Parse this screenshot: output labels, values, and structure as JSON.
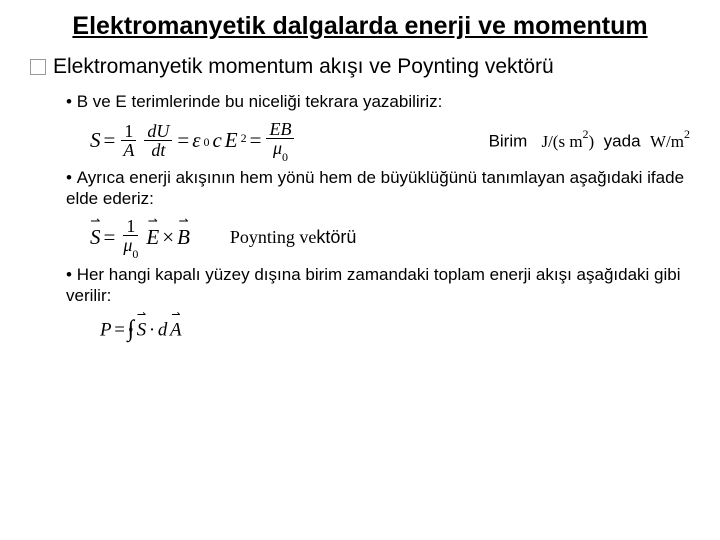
{
  "colors": {
    "text": "#000000",
    "background": "#ffffff",
    "bullet_square_border": "#999999"
  },
  "title": "Elektromanyetik dalgalarda enerji ve momentum",
  "subtitle": "Elektromanyetik momentum akışı ve  Poynting vektörü",
  "bullet1": "B ve E terimlerinde  bu niceliği tekrara yazabiliriz:",
  "eq1": {
    "lhs_var": "S",
    "frac1_num": "1",
    "frac1_den": "A",
    "frac2_num": "dU",
    "frac2_den": "dt",
    "eps": "ε",
    "eps_sub": "0",
    "c": "c",
    "E": "E",
    "E_sup": "2",
    "frac3_num": "EB",
    "mu": "μ",
    "mu_sub": "0"
  },
  "units": {
    "label": "Birim",
    "u1a": "J/(s m",
    "u1b": "2",
    "u1c": ")",
    "yada": "yada",
    "u2a": "W/m",
    "u2b": "2"
  },
  "bullet2": "Ayrıca enerji akışının hem yönü hem de  büyüklüğünü tanımlayan  aşağıdaki  ifade elde ederiz:",
  "eq2": {
    "S": "S",
    "one": "1",
    "mu": "μ",
    "mu_sub": "0",
    "E": "E",
    "times": "×",
    "B": "B"
  },
  "poynting_label_base": "Poynting ve",
  "poynting_label_suffix": "ktörü",
  "bullet3": "Her hangi kapalı  yüzey dışına birim zamandaki toplam enerji akışı aşağıdaki gibi verilir:",
  "eq3": {
    "P": "P",
    "S": "S",
    "dot": "·",
    "d": "d",
    "A": "A"
  }
}
